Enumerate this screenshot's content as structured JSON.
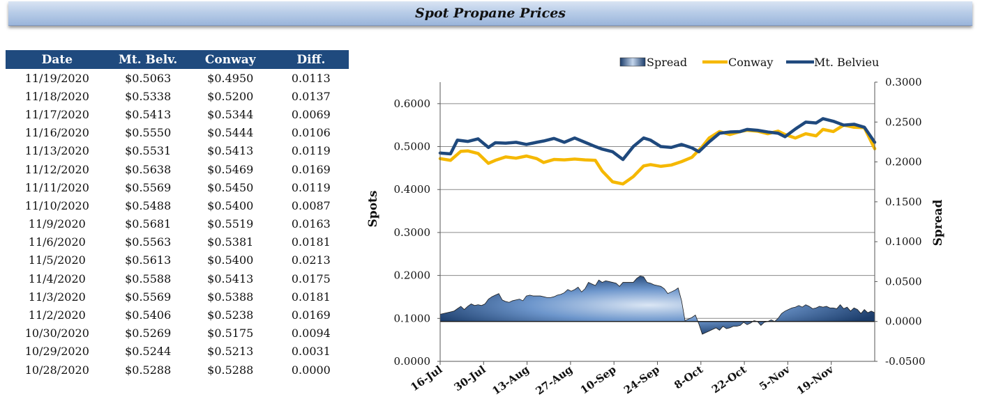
{
  "page_title": "Spot Propane Prices",
  "table": {
    "headers": [
      "Date",
      "Mt. Belv.",
      "Conway",
      "Diff."
    ],
    "rows": [
      [
        "11/19/2020",
        "$0.5063",
        "$0.4950",
        "0.0113"
      ],
      [
        "11/18/2020",
        "$0.5338",
        "$0.5200",
        "0.0137"
      ],
      [
        "11/17/2020",
        "$0.5413",
        "$0.5344",
        "0.0069"
      ],
      [
        "11/16/2020",
        "$0.5550",
        "$0.5444",
        "0.0106"
      ],
      [
        "11/13/2020",
        "$0.5531",
        "$0.5413",
        "0.0119"
      ],
      [
        "11/12/2020",
        "$0.5638",
        "$0.5469",
        "0.0169"
      ],
      [
        "11/11/2020",
        "$0.5569",
        "$0.5450",
        "0.0119"
      ],
      [
        "11/10/2020",
        "$0.5488",
        "$0.5400",
        "0.0087"
      ],
      [
        "11/9/2020",
        "$0.5681",
        "$0.5519",
        "0.0163"
      ],
      [
        "11/6/2020",
        "$0.5563",
        "$0.5381",
        "0.0181"
      ],
      [
        "11/5/2020",
        "$0.5613",
        "$0.5400",
        "0.0213"
      ],
      [
        "11/4/2020",
        "$0.5588",
        "$0.5413",
        "0.0175"
      ],
      [
        "11/3/2020",
        "$0.5569",
        "$0.5388",
        "0.0181"
      ],
      [
        "11/2/2020",
        "$0.5406",
        "$0.5238",
        "0.0169"
      ],
      [
        "10/30/2020",
        "$0.5269",
        "$0.5175",
        "0.0094"
      ],
      [
        "10/29/2020",
        "$0.5244",
        "$0.5213",
        "0.0031"
      ],
      [
        "10/28/2020",
        "$0.5288",
        "$0.5288",
        "0.0000"
      ]
    ]
  },
  "chart_data": {
    "type": "line",
    "ylabel": "Spots",
    "y2label": "Spread",
    "ylim": [
      0,
      0.65
    ],
    "y2lim": [
      -0.05,
      0.3
    ],
    "y_ticks": [
      "0.0000",
      "0.1000",
      "0.2000",
      "0.3000",
      "0.4000",
      "0.5000",
      "0.6000"
    ],
    "y2_ticks": [
      "-0.0500",
      "0.0000",
      "0.0500",
      "0.1000",
      "0.1500",
      "0.2000",
      "0.2500",
      "0.3000"
    ],
    "x_ticks": [
      "16-Jul",
      "30-Jul",
      "13-Aug",
      "27-Aug",
      "10-Sep",
      "24-Sep",
      "8-Oct",
      "22-Oct",
      "5-Nov",
      "19-Nov"
    ],
    "grid": true,
    "legend_position": "top",
    "colors": {
      "spread": "#3a6cb0",
      "conway": "#f5b800",
      "mt_belvieu": "#1f497d"
    },
    "series": [
      {
        "name": "Spread",
        "axis": "right",
        "style": "area",
        "x": [
          0,
          1,
          2,
          3,
          4,
          5,
          6,
          7,
          8,
          9,
          10,
          11,
          12,
          13,
          14,
          15,
          16,
          17,
          18,
          19,
          20,
          21,
          22,
          23,
          24,
          25,
          26,
          27,
          28,
          29,
          30,
          31,
          32,
          33,
          34,
          35,
          36,
          37,
          38,
          39,
          40,
          41,
          42,
          43,
          44,
          45,
          46,
          47,
          48,
          49,
          50,
          51,
          52,
          53,
          54,
          55,
          56,
          57,
          58,
          59,
          60,
          61,
          62,
          63,
          64,
          65,
          66,
          67,
          68,
          69,
          70,
          71,
          72,
          73,
          74,
          75,
          76,
          77,
          78,
          79,
          80,
          81,
          82,
          83,
          84,
          85,
          86,
          87,
          88,
          89,
          90,
          91,
          92,
          93,
          94,
          95,
          96,
          97,
          98,
          99,
          100,
          101,
          102,
          103,
          104,
          105,
          106,
          107,
          108,
          109,
          110,
          111,
          112,
          113,
          114,
          115,
          116,
          117,
          118,
          119,
          120,
          121,
          122,
          123,
          124,
          125,
          126
        ],
        "values": [
          0.009,
          0.01,
          0.011,
          0.012,
          0.013,
          0.016,
          0.019,
          0.015,
          0.019,
          0.022,
          0.02,
          0.021,
          0.02,
          0.022,
          0.028,
          0.031,
          0.033,
          0.035,
          0.027,
          0.025,
          0.024,
          0.026,
          0.027,
          0.028,
          0.026,
          0.032,
          0.033,
          0.032,
          0.032,
          0.032,
          0.031,
          0.03,
          0.03,
          0.031,
          0.033,
          0.034,
          0.036,
          0.04,
          0.038,
          0.04,
          0.043,
          0.037,
          0.041,
          0.049,
          0.047,
          0.045,
          0.052,
          0.049,
          0.051,
          0.05,
          0.049,
          0.048,
          0.044,
          0.049,
          0.049,
          0.049,
          0.049,
          0.054,
          0.057,
          0.056,
          0.049,
          0.048,
          0.046,
          0.045,
          0.044,
          0.041,
          0.035,
          0.037,
          0.039,
          0.042,
          0.026,
          0.001,
          0.003,
          0.005,
          0.008,
          -0.003,
          -0.016,
          -0.014,
          -0.012,
          -0.01,
          -0.008,
          -0.011,
          -0.006,
          -0.009,
          -0.008,
          -0.006,
          -0.006,
          -0.005,
          -0.001,
          -0.004,
          -0.002,
          0.001,
          0.0,
          -0.005,
          -0.001,
          0.0,
          0.002,
          0.0,
          0.004,
          0.01,
          0.013,
          0.015,
          0.017,
          0.018,
          0.02,
          0.018,
          0.021,
          0.019,
          0.016,
          0.017,
          0.019,
          0.018,
          0.019,
          0.017,
          0.017,
          0.016,
          0.021,
          0.016,
          0.018,
          0.013,
          0.017,
          0.015,
          0.01,
          0.015,
          0.011,
          0.013,
          0.011
        ]
      },
      {
        "name": "Conway",
        "axis": "left",
        "style": "line",
        "x": [
          0,
          3,
          6,
          8,
          11,
          14,
          16,
          19,
          22,
          25,
          28,
          30,
          33,
          36,
          39,
          42,
          45,
          47,
          50,
          53,
          56,
          59,
          61,
          64,
          67,
          70,
          73,
          76,
          78,
          81,
          84,
          87,
          89,
          92,
          95,
          98,
          100,
          103,
          106,
          109,
          111,
          114,
          117,
          120,
          123,
          126
        ],
        "values": [
          0.472,
          0.468,
          0.489,
          0.49,
          0.484,
          0.461,
          0.468,
          0.476,
          0.473,
          0.478,
          0.472,
          0.463,
          0.47,
          0.469,
          0.471,
          0.469,
          0.468,
          0.443,
          0.418,
          0.413,
          0.43,
          0.455,
          0.458,
          0.454,
          0.457,
          0.465,
          0.475,
          0.5,
          0.52,
          0.535,
          0.528,
          0.535,
          0.538,
          0.536,
          0.53,
          0.536,
          0.528,
          0.52,
          0.53,
          0.525,
          0.54,
          0.535,
          0.55,
          0.545,
          0.544,
          0.495
        ]
      },
      {
        "name": "Mt. Belvieu",
        "axis": "left",
        "style": "line",
        "x": [
          0,
          3,
          5,
          8,
          11,
          14,
          16,
          19,
          22,
          25,
          28,
          30,
          33,
          36,
          39,
          42,
          45,
          47,
          50,
          53,
          56,
          59,
          61,
          64,
          67,
          70,
          73,
          75,
          78,
          81,
          84,
          87,
          89,
          92,
          95,
          98,
          100,
          103,
          106,
          109,
          111,
          114,
          117,
          120,
          123,
          126
        ],
        "values": [
          0.485,
          0.483,
          0.515,
          0.512,
          0.518,
          0.498,
          0.509,
          0.508,
          0.51,
          0.505,
          0.51,
          0.513,
          0.519,
          0.51,
          0.52,
          0.51,
          0.5,
          0.494,
          0.488,
          0.47,
          0.5,
          0.52,
          0.515,
          0.5,
          0.498,
          0.505,
          0.497,
          0.488,
          0.511,
          0.531,
          0.534,
          0.535,
          0.54,
          0.538,
          0.534,
          0.531,
          0.523,
          0.541,
          0.557,
          0.555,
          0.565,
          0.559,
          0.55,
          0.552,
          0.545,
          0.51
        ]
      }
    ]
  }
}
